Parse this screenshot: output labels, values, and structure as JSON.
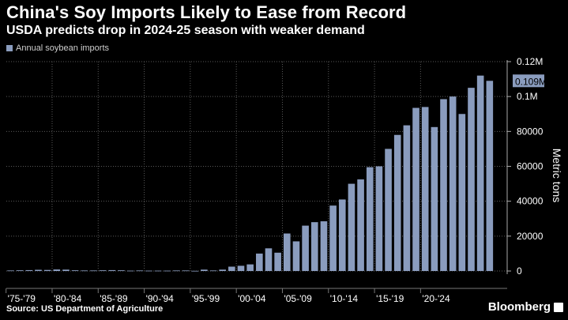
{
  "header": {
    "title": "China's Soy Imports Likely to Ease from Record",
    "subtitle": "USDA predicts drop in 2024-25 season with weaker demand"
  },
  "legend": {
    "label": "Annual soybean imports"
  },
  "footer": {
    "source": "Source: US Department of Agriculture",
    "brand": "Bloomberg"
  },
  "colors": {
    "bar": "#8a9cbe",
    "background": "#000000",
    "grid": "#5a5a5a",
    "callout": "#8a9cbe"
  },
  "chart_data": {
    "type": "bar",
    "ylabel": "Metric tons",
    "ylim": [
      0,
      120000
    ],
    "yticks": [
      {
        "value": 0,
        "label": "0"
      },
      {
        "value": 20000,
        "label": "20000"
      },
      {
        "value": 40000,
        "label": "40000"
      },
      {
        "value": 60000,
        "label": "60000"
      },
      {
        "value": 80000,
        "label": "80000"
      },
      {
        "value": 100000,
        "label": "0.1M"
      },
      {
        "value": 120000,
        "label": "0.12M"
      }
    ],
    "x_tick_labels": [
      "'75-'79",
      "'80-'84",
      "'85-'89",
      "'90-'94",
      "'95-'99",
      "'00-'04",
      "'05-'09",
      "'10-'14",
      "'15-'19",
      "'20-'24"
    ],
    "grid": true,
    "legend_position": "top-left",
    "callout": {
      "label": "0.109M",
      "value": 109000
    },
    "series": [
      {
        "name": "Annual soybean imports",
        "values": [
          300,
          400,
          500,
          700,
          600,
          900,
          800,
          400,
          300,
          300,
          400,
          500,
          400,
          200,
          300,
          200,
          200,
          200,
          300,
          300,
          100,
          800,
          300,
          800,
          2500,
          3000,
          3800,
          10000,
          13000,
          10500,
          21500,
          17000,
          26000,
          28000,
          28500,
          37500,
          41000,
          50000,
          52500,
          59500,
          60000,
          70000,
          78000,
          83500,
          93500,
          94000,
          82500,
          98500,
          100000,
          90000,
          105000,
          112000,
          109000
        ]
      }
    ]
  }
}
